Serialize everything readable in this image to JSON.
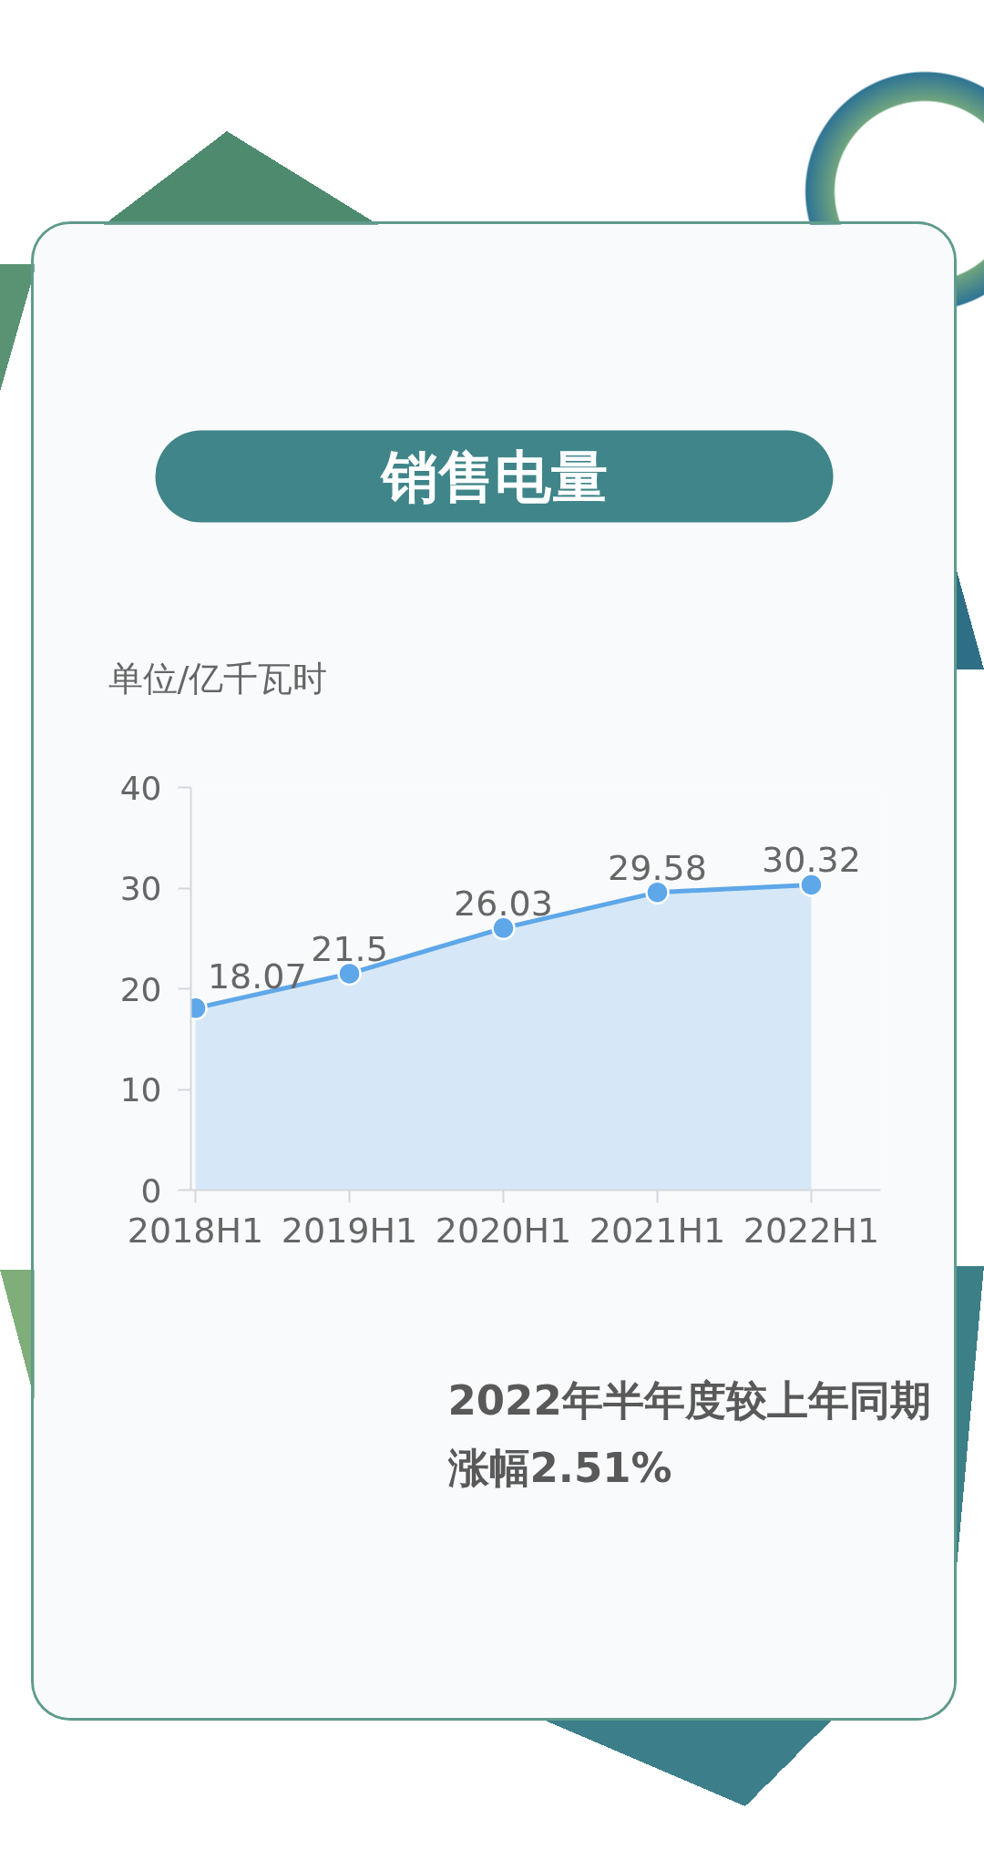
{
  "chart_data": {
    "type": "area",
    "title": "销售电量",
    "ylabel": "单位/亿千瓦时",
    "categories": [
      "2018H1",
      "2019H1",
      "2020H1",
      "2021H1",
      "2022H1"
    ],
    "values": [
      18.07,
      21.5,
      26.03,
      29.58,
      30.32
    ],
    "color": "#5ea7e8",
    "ylim": [
      0,
      40
    ],
    "yticks": [
      0,
      10,
      20,
      30,
      40
    ],
    "grid": false,
    "marker": "circle",
    "data_labels": true,
    "annotations": [
      "2022年半年度较上年同期涨幅2.51%"
    ]
  }
}
